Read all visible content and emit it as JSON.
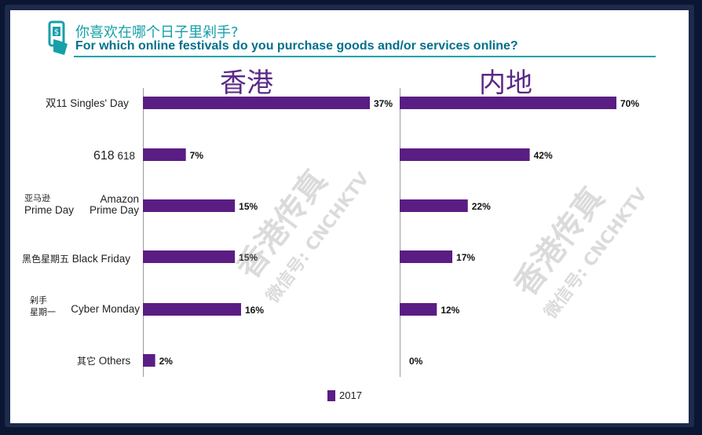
{
  "header": {
    "title_zh": "你喜欢在哪个日子里剁手?",
    "title_en": "For which online festivals do you purchase goods and/or services online?"
  },
  "categories": [
    {
      "zh": "双11",
      "en": "Singles' Day"
    },
    {
      "zh": "618",
      "en": "618"
    },
    {
      "zh": "亚马逊\nPrime Day",
      "en": "Amazon\nPrime Day"
    },
    {
      "zh": "黑色星期五",
      "en": "Black Friday"
    },
    {
      "zh": "剁手\n星期一",
      "en": "Cyber Monday"
    },
    {
      "zh": "其它",
      "en": "Others"
    }
  ],
  "watermark": {
    "line1": "香港传真",
    "line2": "微信号: CNCHKTV"
  },
  "legend": {
    "label": "2017"
  },
  "colors": {
    "bar": "#5a1d84",
    "title_zh": "#16a0a9",
    "title_en": "#00708c",
    "region": "#5a2a86"
  },
  "chart_data": [
    {
      "type": "bar",
      "title": "香港",
      "categories": [
        "双11 Singles' Day",
        "618 618",
        "亚马逊 Prime Day Amazon Prime Day",
        "黑色星期五 Black Friday",
        "剁手星期一 Cyber Monday",
        "其它 Others"
      ],
      "series": [
        {
          "name": "2017",
          "values": [
            37,
            7,
            15,
            15,
            16,
            2
          ],
          "labels": [
            "37%",
            "7%",
            "15%",
            "15%",
            "16%",
            "2%"
          ]
        }
      ],
      "xlim": [
        0,
        100
      ],
      "orientation": "horizontal",
      "grid": false
    },
    {
      "type": "bar",
      "title": "内地",
      "categories": [
        "双11 Singles' Day",
        "618 618",
        "亚马逊 Prime Day Amazon Prime Day",
        "黑色星期五 Black Friday",
        "剁手星期一 Cyber Monday",
        "其它 Others"
      ],
      "series": [
        {
          "name": "2017",
          "values": [
            70,
            42,
            22,
            17,
            12,
            0
          ],
          "labels": [
            "70%",
            "42%",
            "22%",
            "17%",
            "12%",
            "0%"
          ]
        }
      ],
      "xlim": [
        0,
        100
      ],
      "orientation": "horizontal",
      "grid": false
    }
  ]
}
